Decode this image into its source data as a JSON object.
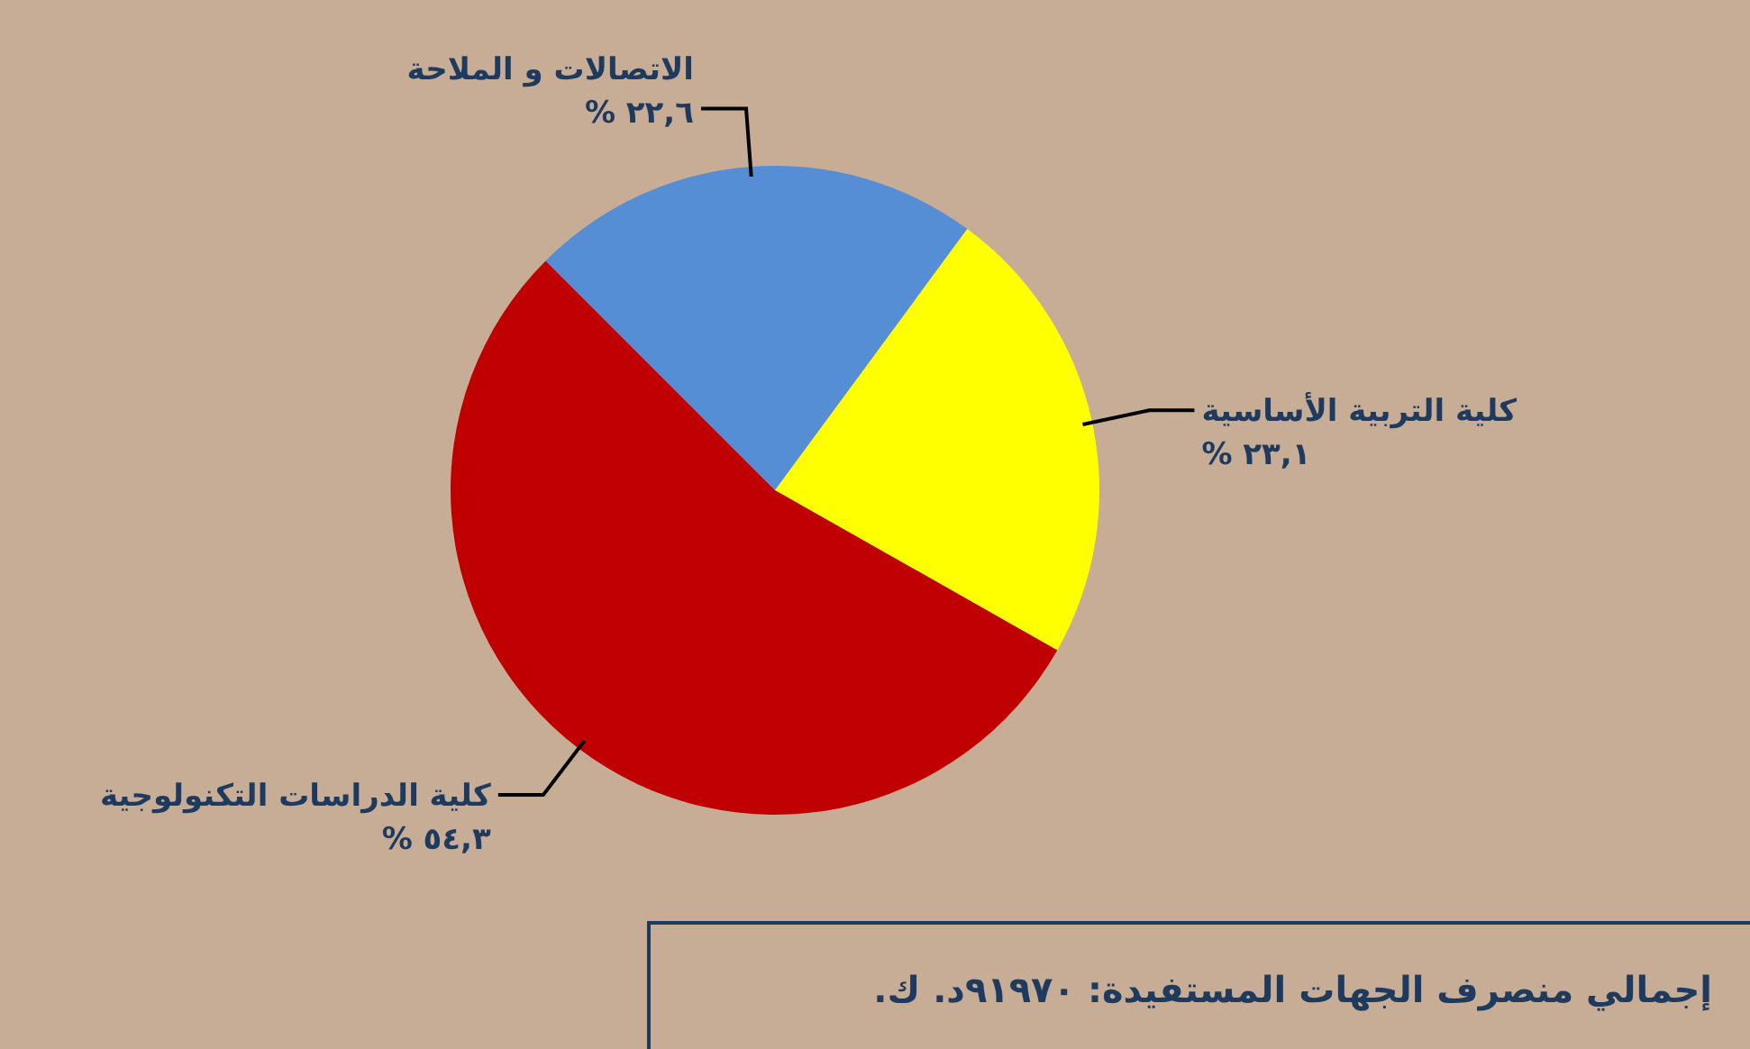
{
  "chart_data": {
    "type": "pie",
    "categories": [
      "الاتصالات و الملاحة",
      "كلية التربية الأساسية",
      "كلية الدراسات التكنولوجية"
    ],
    "values": [
      22.6,
      23.1,
      54.3
    ],
    "colors": [
      "#558ed5",
      "#ffff00",
      "#c00000"
    ],
    "value_labels": [
      "٢٢,٦ %",
      "٢٣,١ %",
      "٥٤,٣ %"
    ],
    "annotations": [
      "إجمالي منصرف الجهات المستفيدة: ٩١٩٧٠د. ك."
    ]
  }
}
